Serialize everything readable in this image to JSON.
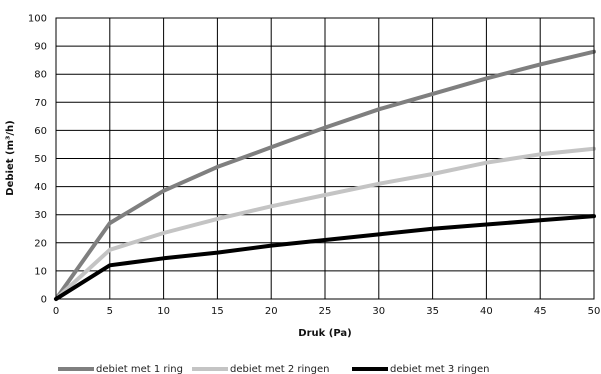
{
  "chart_data": {
    "type": "line",
    "xlabel": "Druk (Pa)",
    "ylabel": "Debiet (m³/h)",
    "xlim": [
      0,
      50
    ],
    "ylim": [
      0,
      100
    ],
    "x_ticks": [
      0,
      5,
      10,
      15,
      20,
      25,
      30,
      35,
      40,
      45,
      50
    ],
    "y_ticks": [
      0,
      10,
      20,
      30,
      40,
      50,
      60,
      70,
      80,
      90,
      100
    ],
    "grid": true,
    "legend_position": "bottom",
    "x": [
      0,
      5,
      10,
      15,
      20,
      25,
      30,
      35,
      40,
      45,
      50
    ],
    "series": [
      {
        "name": "debiet met 1 ring",
        "color": "#7f7f7f",
        "values": [
          0,
          27,
          38.5,
          47,
          54,
          61,
          67.5,
          73,
          78.5,
          83.5,
          88
        ]
      },
      {
        "name": "debiet met 2 ringen",
        "color": "#c4c4c4",
        "values": [
          0,
          17.5,
          23.5,
          28.5,
          33,
          37,
          41,
          44.5,
          48.5,
          51.5,
          53.5
        ]
      },
      {
        "name": "debiet met 3 ringen",
        "color": "#000000",
        "values": [
          0,
          12,
          14.5,
          16.5,
          19,
          21,
          23,
          25,
          26.5,
          28,
          29.5
        ]
      }
    ]
  }
}
